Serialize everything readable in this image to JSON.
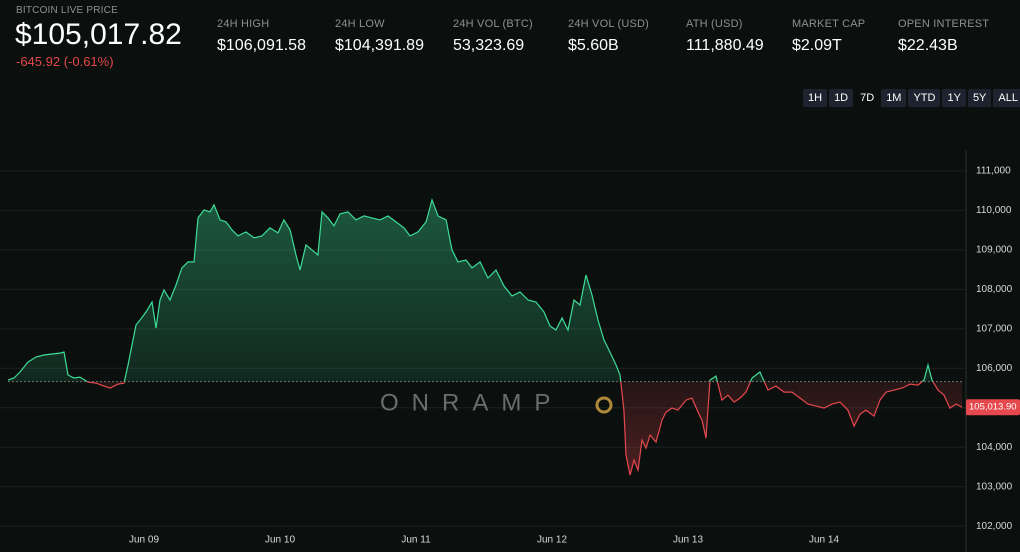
{
  "header": {
    "label": "BITCOIN LIVE PRICE",
    "price": "$105,017.82",
    "change": "-645.92 (-0.61%)"
  },
  "stats": [
    {
      "label": "24H HIGH",
      "value": "$106,091.58"
    },
    {
      "label": "24H LOW",
      "value": "$104,391.89"
    },
    {
      "label": "24H VOL (BTC)",
      "value": "53,323.69"
    },
    {
      "label": "24H VOL (USD)",
      "value": "$5.60B"
    },
    {
      "label": "ATH (USD)",
      "value": "111,880.49"
    },
    {
      "label": "MARKET CAP",
      "value": "$2.09T"
    },
    {
      "label": "OPEN INTEREST",
      "value": "$22.43B"
    }
  ],
  "ranges": [
    "1H",
    "1D",
    "7D",
    "1M",
    "YTD",
    "1Y",
    "5Y",
    "ALL"
  ],
  "active_range": "7D",
  "watermark": "ONRAMP",
  "chart_data": {
    "type": "line",
    "baseline": 105663.74,
    "up_color": "#3ddc97",
    "down_color": "#e5484d",
    "x": [
      0,
      0.044,
      0.088,
      0.147,
      0.206,
      0.265,
      0.324,
      0.382,
      0.412,
      0.441,
      0.485,
      0.529,
      0.588,
      0.647,
      0.706,
      0.75,
      0.809,
      0.853,
      0.882,
      0.912,
      0.941,
      0.971,
      1.015,
      1.059,
      1.088,
      1.118,
      1.147,
      1.191,
      1.235,
      1.279,
      1.324,
      1.368,
      1.397,
      1.441,
      1.485,
      1.515,
      1.559,
      1.603,
      1.647,
      1.691,
      1.75,
      1.809,
      1.868,
      1.926,
      1.985,
      2.029,
      2.074,
      2.118,
      2.147,
      2.191,
      2.235,
      2.279,
      2.309,
      2.353,
      2.397,
      2.441,
      2.5,
      2.559,
      2.618,
      2.676,
      2.735,
      2.794,
      2.853,
      2.912,
      2.956,
      3.015,
      3.074,
      3.118,
      3.162,
      3.221,
      3.265,
      3.309,
      3.368,
      3.412,
      3.471,
      3.529,
      3.588,
      3.647,
      3.706,
      3.765,
      3.824,
      3.882,
      3.941,
      3.985,
      4.029,
      4.074,
      4.118,
      4.162,
      4.206,
      4.25,
      4.294,
      4.338,
      4.382,
      4.426,
      4.471,
      4.5,
      4.529,
      4.544,
      4.574,
      4.603,
      4.632,
      4.662,
      4.691,
      4.721,
      4.765,
      4.809,
      4.838,
      4.882,
      4.926,
      4.985,
      5.029,
      5.074,
      5.103,
      5.132,
      5.162,
      5.206,
      5.25,
      5.294,
      5.338,
      5.382,
      5.426,
      5.471,
      5.529,
      5.588,
      5.647,
      5.706,
      5.765,
      5.824,
      5.882,
      5.941,
      6,
      6.059,
      6.118,
      6.176,
      6.221,
      6.265,
      6.309,
      6.368,
      6.412,
      6.456,
      6.515,
      6.574,
      6.632,
      6.691,
      6.735,
      6.765,
      6.794,
      6.838,
      6.882,
      6.926,
      6.971,
      7.015
    ],
    "values": [
      105702,
      105753,
      105905,
      106158,
      106285,
      106336,
      106361,
      106386,
      106412,
      105829,
      105753,
      105778,
      105651,
      105626,
      105550,
      105499,
      105600,
      105626,
      106082,
      106589,
      107096,
      107223,
      107426,
      107680,
      107020,
      107730,
      107984,
      107730,
      108111,
      108542,
      108694,
      108694,
      109809,
      110012,
      109961,
      110139,
      109759,
      109708,
      109505,
      109353,
      109454,
      109302,
      109353,
      109556,
      109429,
      109759,
      109505,
      108871,
      108491,
      109125,
      108998,
      108871,
      109961,
      109809,
      109607,
      109911,
      109961,
      109759,
      109860,
      109809,
      109759,
      109860,
      109708,
      109556,
      109353,
      109454,
      109708,
      110266,
      109860,
      109759,
      108998,
      108694,
      108744,
      108542,
      108694,
      108288,
      108491,
      108085,
      107832,
      107933,
      107730,
      107680,
      107426,
      107071,
      106970,
      107274,
      106970,
      107730,
      107603,
      108364,
      107857,
      107223,
      106716,
      106412,
      106082,
      105829,
      104941,
      103800,
      103293,
      103673,
      103420,
      104181,
      103978,
      104307,
      104130,
      104688,
      104890,
      104992,
      104941,
      105195,
      105245,
      104890,
      104688,
      104231,
      105702,
      105803,
      105195,
      105322,
      105144,
      105245,
      105398,
      105753,
      105905,
      105448,
      105550,
      105398,
      105398,
      105245,
      105093,
      105043,
      104992,
      105093,
      105144,
      104941,
      104536,
      104840,
      104941,
      104789,
      105195,
      105398,
      105448,
      105499,
      105600,
      105575,
      105702,
      106082,
      105702,
      105448,
      105322,
      104992,
      105093,
      105013.9
    ],
    "value_labels": [
      null,
      null,
      null,
      null,
      null,
      null,
      null,
      null,
      null,
      null,
      null,
      null,
      null,
      null,
      null,
      null,
      null,
      null,
      null,
      null,
      null,
      null,
      null,
      null,
      null,
      null,
      null,
      null,
      null,
      null,
      null,
      null,
      null,
      null,
      null,
      null,
      null,
      null,
      null,
      null,
      null,
      null,
      null,
      null,
      null,
      null,
      null,
      null,
      null,
      null,
      null,
      null,
      null,
      null,
      null,
      null,
      null,
      null,
      null,
      null,
      null,
      null,
      null,
      null,
      null,
      null,
      null,
      null,
      null,
      null,
      null,
      null,
      null,
      null,
      null,
      null,
      null,
      null,
      null,
      null,
      null,
      null,
      null,
      null,
      null,
      null,
      null,
      null,
      null,
      null,
      null,
      null,
      null,
      null,
      null,
      null,
      null,
      null,
      null,
      null,
      null,
      null,
      null,
      null,
      null,
      null,
      null,
      null,
      null,
      null,
      null,
      null,
      null,
      null,
      null,
      null,
      null,
      null,
      null,
      null,
      null,
      null,
      null,
      null,
      null,
      null,
      null,
      null,
      null,
      null,
      null,
      null,
      null,
      null,
      null,
      null,
      null,
      null,
      null,
      null,
      null,
      null,
      null,
      null,
      null,
      null,
      null,
      null,
      null,
      null,
      null,
      "105,013.90"
    ],
    "xlim": [
      0,
      7.02
    ],
    "xticks": [
      {
        "value": 1,
        "label": "Jun 09"
      },
      {
        "value": 2,
        "label": "Jun 10"
      },
      {
        "value": 3,
        "label": "Jun 11"
      },
      {
        "value": 4,
        "label": "Jun 12"
      },
      {
        "value": 5,
        "label": "Jun 13"
      },
      {
        "value": 6,
        "label": "Jun 14"
      }
    ],
    "ylim": [
      101650,
      111530
    ],
    "yticks": [
      {
        "value": 102000,
        "label": "102,000"
      },
      {
        "value": 103000,
        "label": "103,000"
      },
      {
        "value": 104000,
        "label": "104,000"
      },
      {
        "value": 105000,
        "label": "105,000"
      },
      {
        "value": 106000,
        "label": "106,000"
      },
      {
        "value": 107000,
        "label": "107,000"
      },
      {
        "value": 108000,
        "label": "108,000"
      },
      {
        "value": 109000,
        "label": "109,000"
      },
      {
        "value": 110000,
        "label": "110,000"
      },
      {
        "value": 111000,
        "label": "111,000"
      }
    ],
    "grid": true
  }
}
